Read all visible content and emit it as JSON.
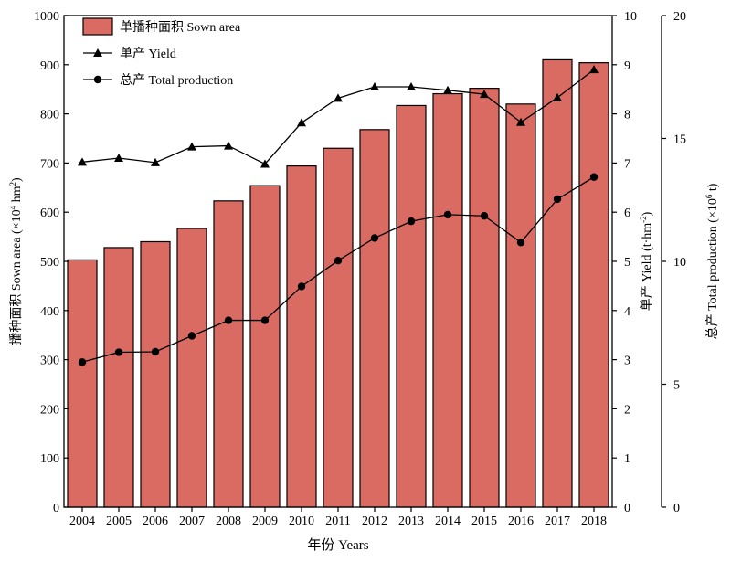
{
  "chart_data": {
    "type": "bar",
    "categories": [
      "2004",
      "2005",
      "2006",
      "2007",
      "2008",
      "2009",
      "2010",
      "2011",
      "2012",
      "2013",
      "2014",
      "2015",
      "2016",
      "2017",
      "2018"
    ],
    "xlabel": "年份 Years",
    "series": [
      {
        "name": "单播种面积 Sown area",
        "type": "bar",
        "axis": "left",
        "color": "#d96b63",
        "values": [
          503,
          528,
          540,
          567,
          623,
          654,
          694,
          730,
          768,
          817,
          841,
          852,
          820,
          910,
          904
        ]
      },
      {
        "name": "单产 Yield",
        "type": "line",
        "marker": "triangle",
        "axis": "right1",
        "color": "#000000",
        "values": [
          7.02,
          7.1,
          7.01,
          7.33,
          7.35,
          6.98,
          7.82,
          8.32,
          8.55,
          8.55,
          8.48,
          8.4,
          7.83,
          8.33,
          8.9
        ]
      },
      {
        "name": "总产 Total production",
        "type": "line",
        "marker": "circle",
        "axis": "right2",
        "color": "#000000",
        "values": [
          5.9,
          6.3,
          6.32,
          6.97,
          7.6,
          7.6,
          8.98,
          10.03,
          10.95,
          11.63,
          11.9,
          11.85,
          10.77,
          12.53,
          13.43
        ]
      }
    ],
    "axes": {
      "left": {
        "label_pre": "播种面积 Sown area (×10",
        "label_sup1": "4",
        "label_mid": " hm",
        "label_sup2": "2",
        "label_post": ")",
        "range": [
          0,
          1000
        ],
        "ticks": [
          "0",
          "100",
          "200",
          "300",
          "400",
          "500",
          "600",
          "700",
          "800",
          "900",
          "1000"
        ]
      },
      "right1": {
        "label_pre": "单产 Yield (t·hm",
        "label_sup1": "-2",
        "label_post": ")",
        "range": [
          0,
          10
        ],
        "ticks": [
          "0",
          "1",
          "2",
          "3",
          "4",
          "5",
          "6",
          "7",
          "8",
          "9",
          "10"
        ]
      },
      "right2": {
        "label_pre": "总产 Total production (×10",
        "label_sup1": "6",
        "label_post": " t)",
        "range": [
          0,
          20
        ],
        "ticks": [
          "0",
          "5",
          "10",
          "15",
          "20"
        ]
      }
    },
    "legend": {
      "position": "top-left",
      "entries": [
        "单播种面积 Sown area",
        "单产 Yield",
        "总产 Total production"
      ]
    },
    "grid": false
  }
}
